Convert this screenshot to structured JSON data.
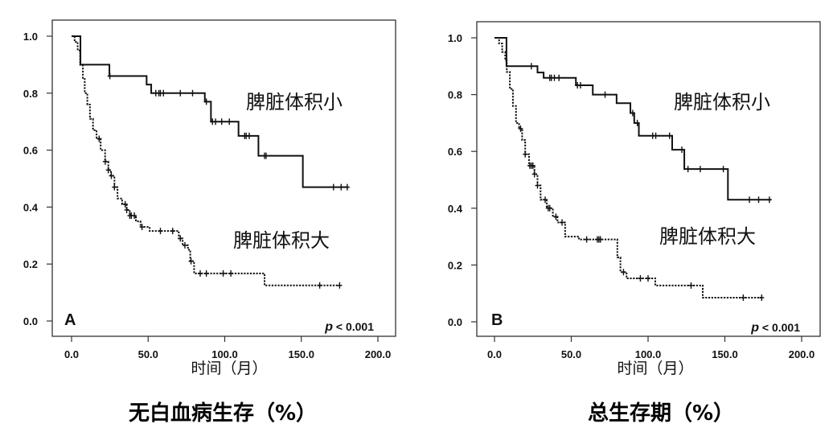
{
  "chart_data": [
    {
      "type": "line",
      "subtype": "kaplan-meier",
      "panel_label": "A",
      "title": "无白血病生存（%）",
      "xlabel": "时间（月）",
      "ylabel": "",
      "xlim": [
        0,
        200
      ],
      "ylim": [
        0,
        1
      ],
      "x_ticks": [
        "0.0",
        "50.0",
        "100.0",
        "150.0",
        "200.0"
      ],
      "y_ticks": [
        "0.0",
        "0.2",
        "0.4",
        "0.6",
        "0.8",
        "1.0"
      ],
      "annotation": "p < 0.001",
      "annotation_p": "p",
      "annotation_rest": " < 0.001",
      "grid": false,
      "series": [
        {
          "name": "脾脏体积小",
          "style": "solid",
          "steps": [
            [
              5.8,
              0.9
            ],
            [
              24.7,
              0.86
            ],
            [
              49,
              0.83
            ],
            [
              52,
              0.8
            ],
            [
              87,
              0.77
            ],
            [
              91,
              0.7
            ],
            [
              109,
              0.65
            ],
            [
              122,
              0.58
            ],
            [
              151,
              0.47
            ]
          ],
          "end": 180,
          "censored": [
            25,
            55,
            57,
            58,
            60,
            71,
            79,
            88,
            92,
            94,
            98,
            103,
            113,
            114,
            116,
            126,
            127,
            171,
            176,
            180
          ]
        },
        {
          "name": "脾脏体积大",
          "style": "dotted",
          "steps": [
            [
              2,
              0.98
            ],
            [
              4,
              0.95
            ],
            [
              5.6,
              0.9
            ],
            [
              7.4,
              0.85
            ],
            [
              8.6,
              0.8
            ],
            [
              10.3,
              0.76
            ],
            [
              12,
              0.71
            ],
            [
              14,
              0.67
            ],
            [
              16.3,
              0.64
            ],
            [
              19,
              0.6
            ],
            [
              21.9,
              0.56
            ],
            [
              24,
              0.53
            ],
            [
              25.7,
              0.51
            ],
            [
              28,
              0.47
            ],
            [
              30,
              0.43
            ],
            [
              33,
              0.41
            ],
            [
              36,
              0.39
            ],
            [
              38,
              0.37
            ],
            [
              42,
              0.35
            ],
            [
              45,
              0.33
            ],
            [
              51,
              0.316
            ],
            [
              70,
              0.29
            ],
            [
              72.5,
              0.266
            ],
            [
              76,
              0.25
            ],
            [
              77.5,
              0.21
            ],
            [
              80,
              0.167
            ],
            [
              126,
              0.125
            ]
          ],
          "end": 175,
          "censored": [
            18,
            22,
            24,
            26,
            28,
            35,
            36,
            38,
            39,
            41,
            46,
            58,
            66,
            71,
            74,
            78,
            84,
            88,
            99,
            104,
            162,
            175
          ]
        }
      ]
    },
    {
      "type": "line",
      "subtype": "kaplan-meier",
      "panel_label": "B",
      "title": "总生存期（%）",
      "xlabel": "时间（月）",
      "ylabel": "",
      "xlim": [
        0,
        200
      ],
      "ylim": [
        0,
        1
      ],
      "x_ticks": [
        "0.0",
        "50.0",
        "100.0",
        "150.0",
        "200.0"
      ],
      "y_ticks": [
        "0.0",
        "0.2",
        "0.4",
        "0.6",
        "0.8",
        "1.0"
      ],
      "annotation": "p < 0.001",
      "annotation_p": "p",
      "annotation_rest": " < 0.001",
      "grid": false,
      "series": [
        {
          "name": "脾脏体积小",
          "style": "solid",
          "steps": [
            [
              7.8,
              0.9
            ],
            [
              28,
              0.878
            ],
            [
              32,
              0.859
            ],
            [
              53,
              0.833
            ],
            [
              64,
              0.8
            ],
            [
              79.5,
              0.77
            ],
            [
              88.5,
              0.735
            ],
            [
              91,
              0.7
            ],
            [
              94,
              0.655
            ],
            [
              115.7,
              0.606
            ],
            [
              123.6,
              0.538
            ],
            [
              152,
              0.43
            ]
          ],
          "end": 180,
          "censored": [
            24,
            36,
            37,
            39,
            42,
            54,
            56,
            72,
            90,
            93,
            103,
            105,
            114,
            122,
            126,
            134,
            149,
            166,
            172,
            179
          ]
        },
        {
          "name": "脾脏体积大",
          "style": "dotted",
          "steps": [
            [
              3,
              0.98
            ],
            [
              5,
              0.95
            ],
            [
              7,
              0.92
            ],
            [
              8,
              0.88
            ],
            [
              10,
              0.82
            ],
            [
              12,
              0.76
            ],
            [
              14,
              0.7
            ],
            [
              16,
              0.68
            ],
            [
              18,
              0.64
            ],
            [
              20,
              0.59
            ],
            [
              22.5,
              0.55
            ],
            [
              26,
              0.52
            ],
            [
              28,
              0.48
            ],
            [
              30,
              0.43
            ],
            [
              34,
              0.4
            ],
            [
              38,
              0.37
            ],
            [
              41,
              0.35
            ],
            [
              46,
              0.3
            ],
            [
              55,
              0.29
            ],
            [
              77.5,
              0.29
            ],
            [
              80,
              0.227
            ],
            [
              82,
              0.175
            ],
            [
              86,
              0.153
            ],
            [
              104.7,
              0.128
            ],
            [
              135.6,
              0.085
            ]
          ],
          "end": 174,
          "censored": [
            17,
            20,
            23,
            24,
            25,
            26,
            28,
            33,
            35,
            36,
            40,
            44,
            60,
            67,
            68,
            69,
            84,
            95,
            100,
            128,
            162,
            174
          ]
        }
      ]
    }
  ]
}
